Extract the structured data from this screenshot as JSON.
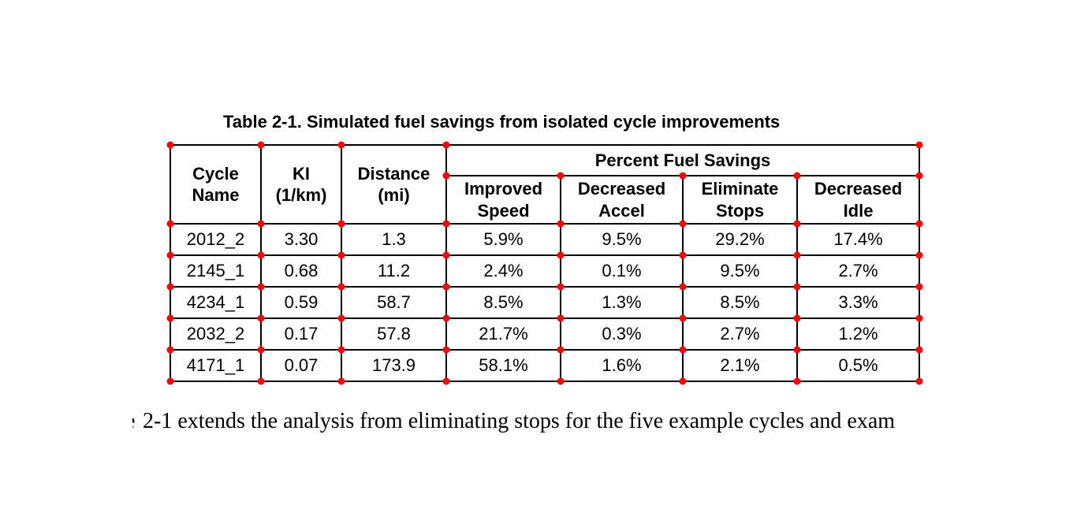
{
  "page": {
    "caption": "Table 2-1. Simulated fuel savings from isolated cycle improvements",
    "body_fragment": "e",
    "body_text": "2-1 extends the analysis from eliminating stops for the five example cycles and exam"
  },
  "colors": {
    "marker": "#ff0000",
    "grid": "#000000"
  },
  "table": {
    "headers": {
      "cycle_name": "Cycle\nName",
      "ki": "KI\n(1/km)",
      "distance": "Distance\n(mi)",
      "percent_fuel_savings": "Percent Fuel Savings",
      "sub": [
        "Improved\nSpeed",
        "Decreased\nAccel",
        "Eliminate\nStops",
        "Decreased\nIdle"
      ]
    },
    "rows": [
      [
        "2012_2",
        "3.30",
        "1.3",
        "5.9%",
        "9.5%",
        "29.2%",
        "17.4%"
      ],
      [
        "2145_1",
        "0.68",
        "11.2",
        "2.4%",
        "0.1%",
        "9.5%",
        "2.7%"
      ],
      [
        "4234_1",
        "0.59",
        "58.7",
        "8.5%",
        "1.3%",
        "8.5%",
        "3.3%"
      ],
      [
        "2032_2",
        "0.17",
        "57.8",
        "21.7%",
        "0.3%",
        "2.7%",
        "1.2%"
      ],
      [
        "4171_1",
        "0.07",
        "173.9",
        "58.1%",
        "1.6%",
        "2.1%",
        "0.5%"
      ]
    ]
  }
}
